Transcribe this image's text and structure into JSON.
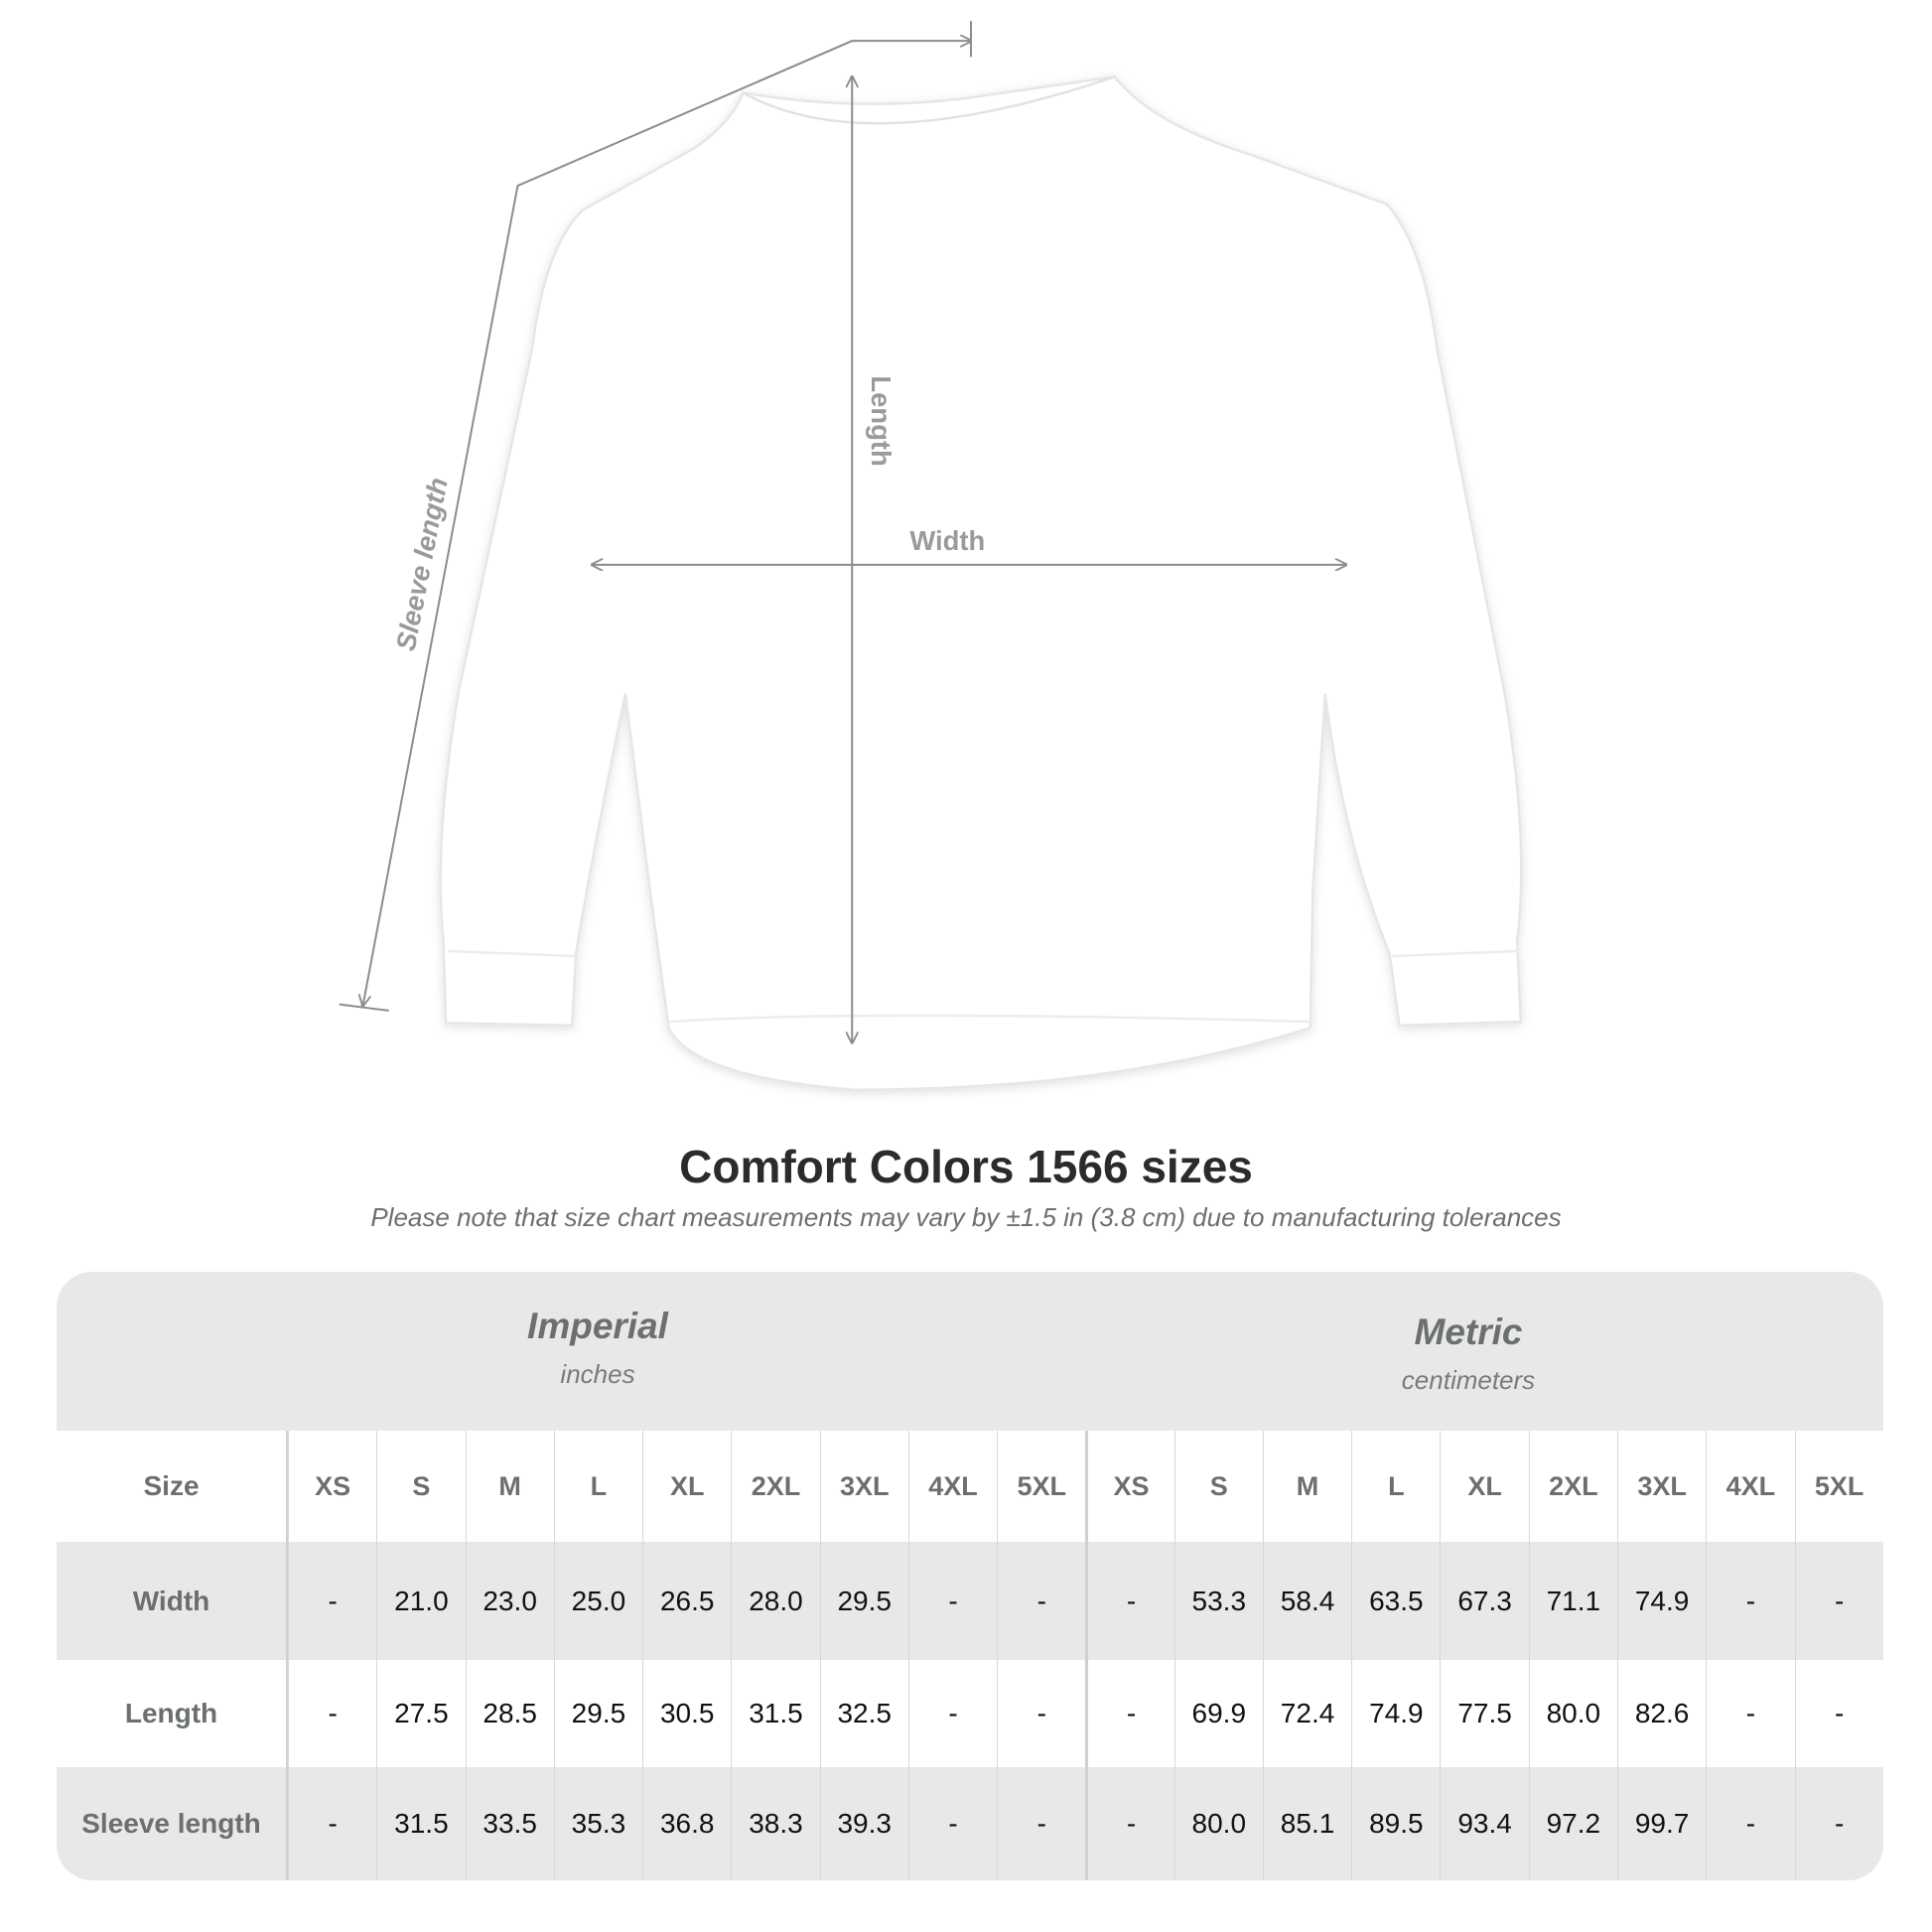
{
  "illustration": {
    "labels": {
      "length": "Length",
      "width": "Width",
      "sleeve": "Sleeve length"
    },
    "garment_color": "#ffffff",
    "line_color": "#8c8c8c"
  },
  "title": "Comfort Colors 1566 sizes",
  "subtitle": "Please note that size chart measurements may vary by ±1.5 in (3.8 cm) due to manufacturing tolerances",
  "table": {
    "imperial": {
      "name": "Imperial",
      "unit": "inches"
    },
    "metric": {
      "name": "Metric",
      "unit": "centimeters"
    },
    "size_label": "Size",
    "sizes": [
      "XS",
      "S",
      "M",
      "L",
      "XL",
      "2XL",
      "3XL",
      "4XL",
      "5XL"
    ],
    "rows": [
      {
        "label": "Width",
        "imperial": [
          "-",
          "21.0",
          "23.0",
          "25.0",
          "26.5",
          "28.0",
          "29.5",
          "-",
          "-"
        ],
        "metric": [
          "-",
          "53.3",
          "58.4",
          "63.5",
          "67.3",
          "71.1",
          "74.9",
          "-",
          "-"
        ]
      },
      {
        "label": "Length",
        "imperial": [
          "-",
          "27.5",
          "28.5",
          "29.5",
          "30.5",
          "31.5",
          "32.5",
          "-",
          "-"
        ],
        "metric": [
          "-",
          "69.9",
          "72.4",
          "74.9",
          "77.5",
          "80.0",
          "82.6",
          "-",
          "-"
        ]
      },
      {
        "label": "Sleeve length",
        "imperial": [
          "-",
          "31.5",
          "33.5",
          "35.3",
          "36.8",
          "38.3",
          "39.3",
          "-",
          "-"
        ],
        "metric": [
          "-",
          "80.0",
          "85.1",
          "89.5",
          "93.4",
          "97.2",
          "99.7",
          "-",
          "-"
        ]
      }
    ]
  }
}
